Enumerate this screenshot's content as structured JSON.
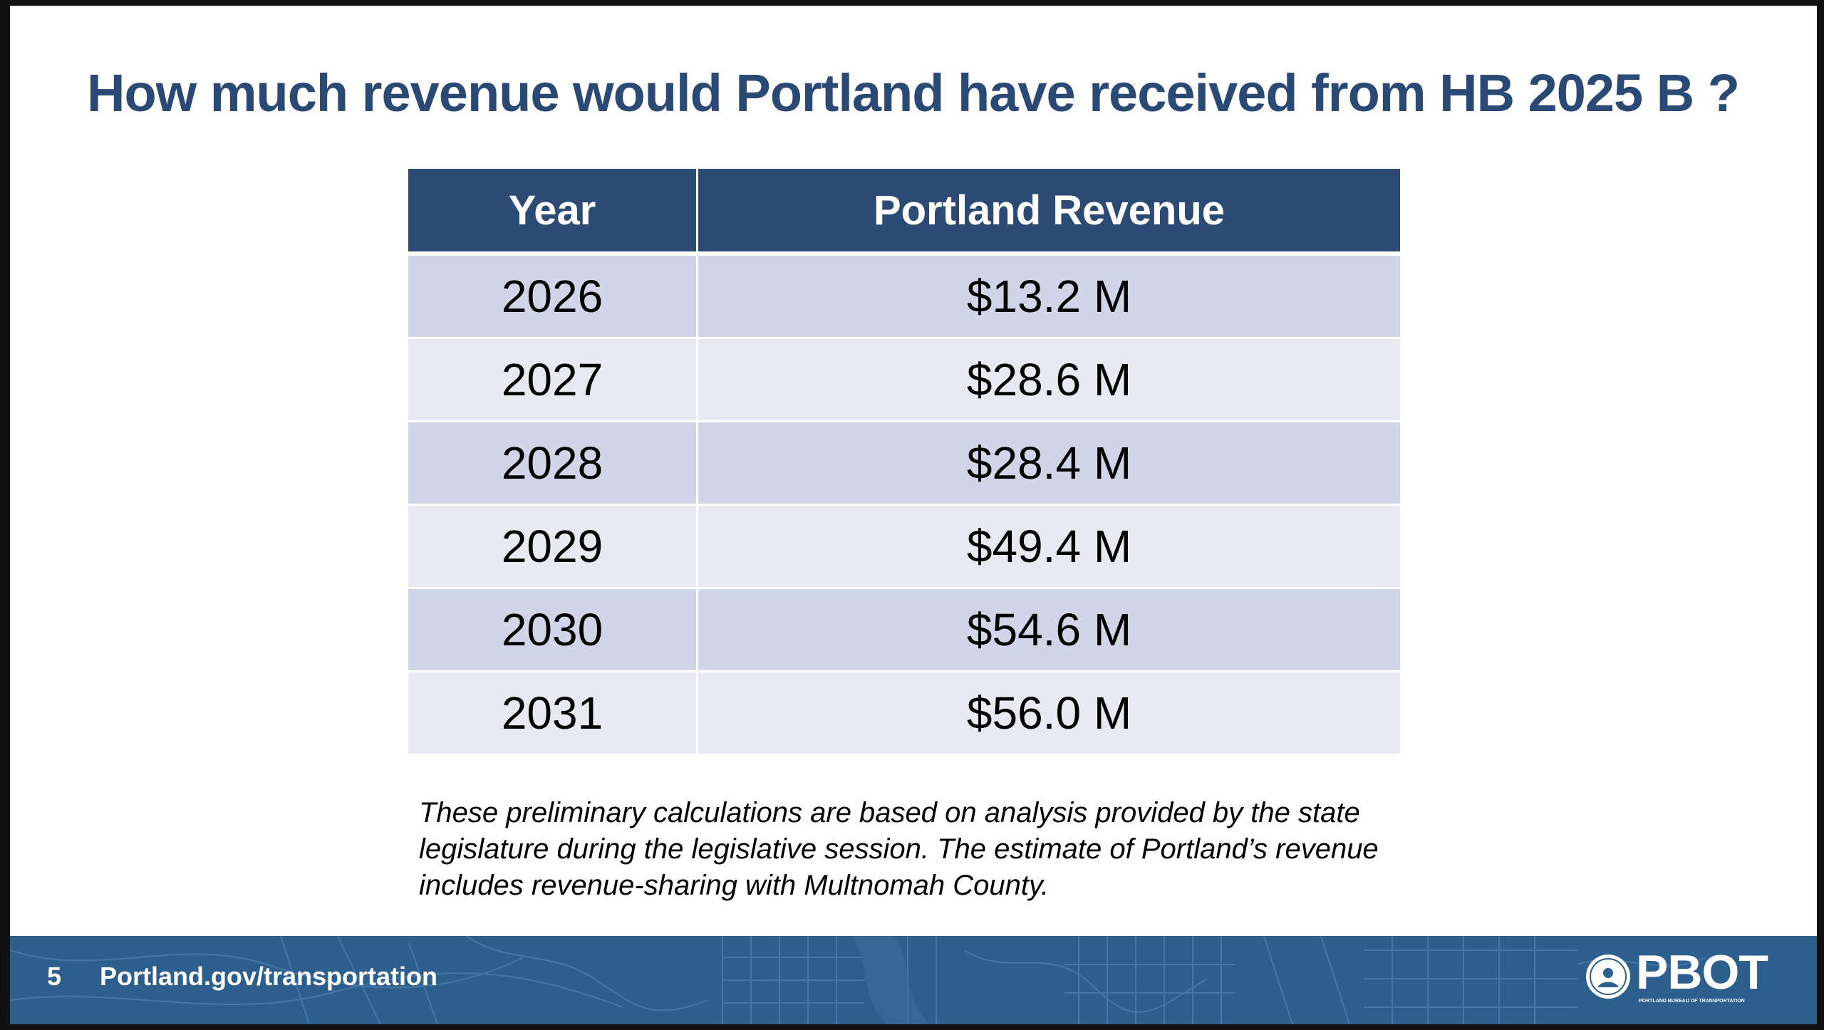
{
  "slide": {
    "title": "How much revenue would Portland have received from HB 2025 B ?",
    "table": {
      "headers": [
        "Year",
        "Portland Revenue"
      ],
      "rows": [
        [
          "2026",
          "$13.2 M"
        ],
        [
          "2027",
          "$28.6 M"
        ],
        [
          "2028",
          "$28.4 M"
        ],
        [
          "2029",
          "$49.4 M"
        ],
        [
          "2030",
          "$54.6 M"
        ],
        [
          "2031",
          "$56.0 M"
        ]
      ]
    },
    "note": "These preliminary calculations are based on analysis provided by the state legislature during the legislative session. The estimate of Portland’s revenue includes revenue-sharing with Multnomah County."
  },
  "footer": {
    "page_number": "5",
    "url": "Portland.gov/transportation",
    "logo_text": "PBOT",
    "logo_subtext": "PORTLAND BUREAU OF TRANSPORTATION",
    "logo_icon": "city-seal-icon",
    "background_color": "#2c5e8e"
  },
  "colors": {
    "title": "#2a4a75",
    "header_bg": "#2b4a74",
    "row_dark": "#d0d6e8",
    "row_light": "#e8eaf3"
  }
}
